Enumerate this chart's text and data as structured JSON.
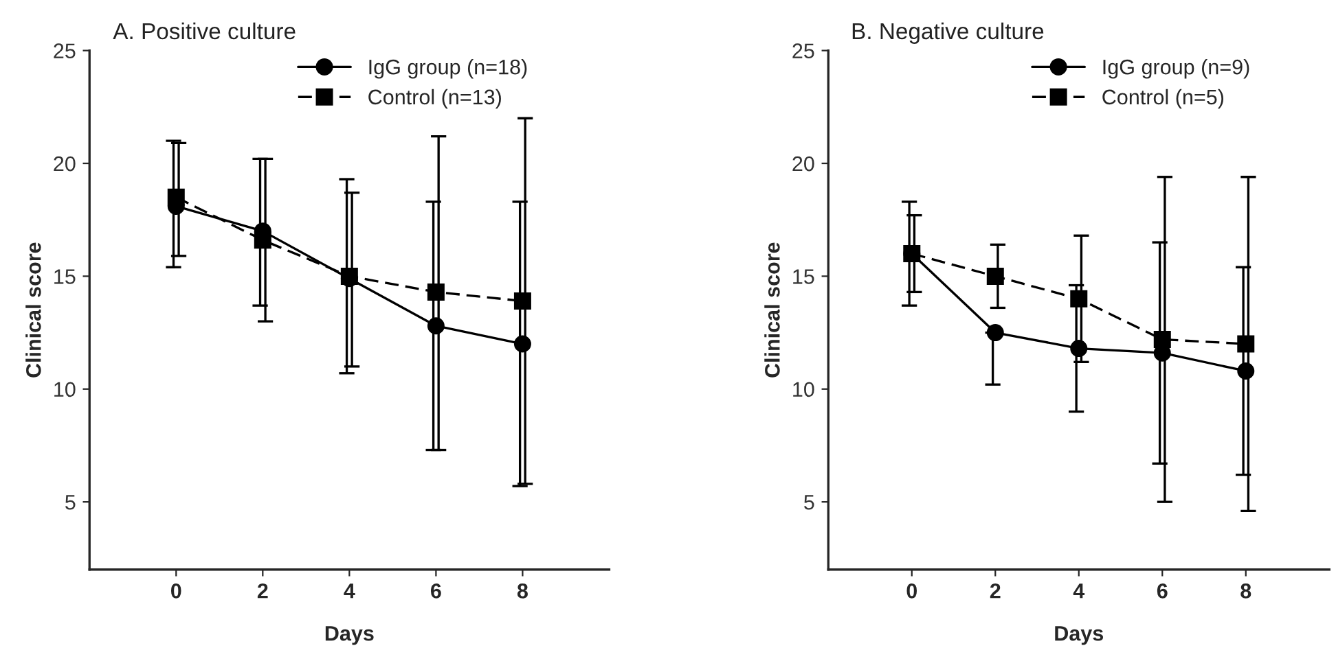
{
  "chart_data": [
    {
      "type": "line",
      "title": "A. Positive culture",
      "xlabel": "Days",
      "ylabel": "Clinical score",
      "x": [
        0,
        2,
        4,
        6,
        8
      ],
      "xlim": [
        -2,
        10
      ],
      "xticks": [
        0,
        2,
        4,
        6,
        8
      ],
      "ylim": [
        2,
        25
      ],
      "yticks": [
        5,
        10,
        15,
        20,
        25
      ],
      "grid": false,
      "legend": "top right",
      "series": [
        {
          "name": "IgG group (n=18)",
          "color": "#000000",
          "marker": "circle",
          "line_style": "solid",
          "values": [
            18.1,
            17.0,
            14.9,
            12.8,
            12.0
          ],
          "errors": [
            [
              15.4,
              21.0
            ],
            [
              13.7,
              20.2
            ],
            [
              10.7,
              19.3
            ],
            [
              7.3,
              18.3
            ],
            [
              5.7,
              18.3
            ]
          ]
        },
        {
          "name": "Control (n=13)",
          "color": "#000000",
          "marker": "square",
          "line_style": "dashed",
          "values": [
            18.5,
            16.6,
            15.0,
            14.3,
            13.9
          ],
          "errors": [
            [
              15.9,
              20.9
            ],
            [
              13.0,
              20.2
            ],
            [
              11.0,
              18.7
            ],
            [
              7.3,
              21.2
            ],
            [
              5.8,
              22.0
            ]
          ]
        }
      ]
    },
    {
      "type": "line",
      "title": "B. Negative culture",
      "xlabel": "Days",
      "ylabel": "Clinical score",
      "x": [
        0,
        2,
        4,
        6,
        8
      ],
      "xlim": [
        -2,
        10
      ],
      "xticks": [
        0,
        2,
        4,
        6,
        8
      ],
      "ylim": [
        2,
        25
      ],
      "yticks": [
        5,
        10,
        15,
        20,
        25
      ],
      "grid": false,
      "legend": "top right",
      "series": [
        {
          "name": "IgG group (n=9)",
          "color": "#000000",
          "marker": "circle",
          "line_style": "solid",
          "values": [
            16.0,
            12.5,
            11.8,
            11.6,
            10.8
          ],
          "errors": [
            [
              13.7,
              18.3
            ],
            [
              10.2,
              12.5
            ],
            [
              9.0,
              14.6
            ],
            [
              6.7,
              16.5
            ],
            [
              6.2,
              15.4
            ]
          ]
        },
        {
          "name": "Control (n=5)",
          "color": "#000000",
          "marker": "square",
          "line_style": "dashed",
          "values": [
            16.0,
            15.0,
            14.0,
            12.2,
            12.0
          ],
          "errors": [
            [
              14.3,
              17.7
            ],
            [
              13.6,
              16.4
            ],
            [
              11.2,
              16.8
            ],
            [
              5.0,
              19.4
            ],
            [
              4.6,
              19.4
            ]
          ]
        }
      ]
    }
  ]
}
